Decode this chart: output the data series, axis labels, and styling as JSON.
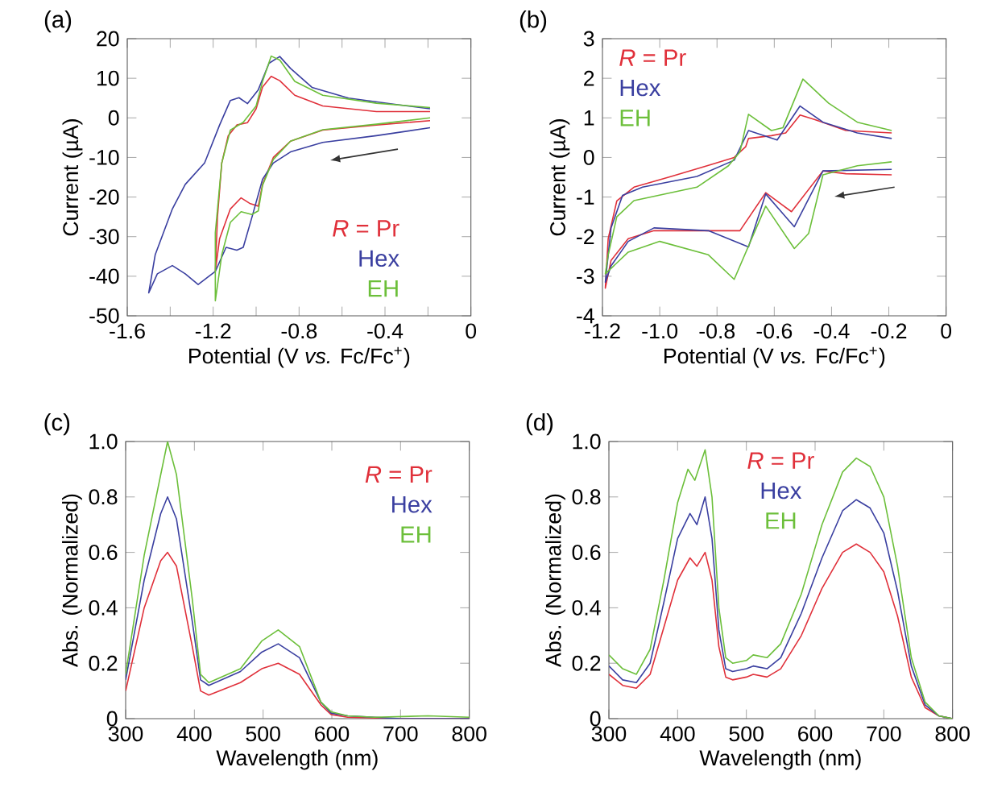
{
  "chart_data": [
    {
      "type": "line",
      "title": "(a)",
      "xlabel": "Potential (V *vs.* Fc/Fc$^{+}$)",
      "ylabel": "Current (µA)",
      "xlim": [
        -1.6,
        0
      ],
      "ylim": [
        -50,
        20
      ],
      "xticks": [
        -1.6,
        {
          "value": -1.4,
          "label": null
        },
        -1.2,
        {
          "value": -1.0,
          "label": null
        },
        -0.8,
        {
          "value": -0.6,
          "label": null
        },
        -0.4,
        {
          "value": -0.2,
          "label": null
        },
        0
      ],
      "yticks": [
        -50,
        -40,
        -30,
        -20,
        -10,
        0,
        10,
        20
      ],
      "legend": "bottom right",
      "series": [
        {
          "name": "*R* = Pr",
          "color": "#e0303a",
          "x": [
            -0.19,
            -0.44,
            -0.69,
            -0.84,
            -0.92,
            -0.97,
            -0.99,
            -1.03,
            -1.07,
            -1.12,
            -1.17,
            -1.19,
            -1.18,
            -1.16,
            -1.13,
            -1.09,
            -1.04,
            -1.0,
            -0.97,
            -0.93,
            -0.89,
            -0.82,
            -0.69,
            -0.44,
            -0.19
          ],
          "values": [
            -0.7,
            -1.8,
            -3.1,
            -5.9,
            -10,
            -16.8,
            -22.3,
            -21.6,
            -20.2,
            -23,
            -30.5,
            -38.7,
            -25,
            -11.4,
            -4.5,
            -1.8,
            -1.2,
            2.3,
            7.8,
            10.5,
            9.4,
            5.7,
            3,
            1.6,
            1.6
          ]
        },
        {
          "name": "Hex",
          "color": "#3a3fa0",
          "x": [
            -0.19,
            -0.44,
            -0.69,
            -0.84,
            -0.92,
            -0.97,
            -1.02,
            -1.06,
            -1.09,
            -1.14,
            -1.19,
            -1.27,
            -1.33,
            -1.39,
            -1.46,
            -1.5,
            -1.47,
            -1.39,
            -1.33,
            -1.24,
            -1.17,
            -1.12,
            -1.08,
            -1.04,
            -0.99,
            -0.94,
            -0.89,
            -0.84,
            -0.74,
            -0.57,
            -0.34,
            -0.19
          ],
          "values": [
            -2.5,
            -4.5,
            -6.2,
            -8.6,
            -11.4,
            -15.5,
            -25.2,
            -32.7,
            -33.4,
            -32.7,
            -38.8,
            -42.1,
            -39.4,
            -37.3,
            -39.4,
            -44.2,
            -34.6,
            -23,
            -16.8,
            -11.4,
            -1.8,
            4.4,
            5.1,
            3.6,
            7.1,
            13.8,
            15.5,
            12.5,
            7.7,
            5,
            3.3,
            2.3
          ]
        },
        {
          "name": "EH",
          "color": "#6cbf3a",
          "x": [
            -0.19,
            -0.44,
            -0.69,
            -0.84,
            -0.92,
            -0.97,
            -0.99,
            -1.02,
            -1.07,
            -1.12,
            -1.16,
            -1.19,
            -1.19,
            -1.16,
            -1.12,
            -1.06,
            -1.0,
            -0.97,
            -0.93,
            -0.89,
            -0.82,
            -0.69,
            -0.44,
            -0.19
          ],
          "values": [
            0,
            -1.6,
            -3,
            -5.9,
            -10.5,
            -17,
            -23.5,
            -24.4,
            -23.7,
            -26.4,
            -34.6,
            -46.2,
            -29,
            -11.4,
            -3.1,
            -1.1,
            3,
            9.2,
            15.6,
            14.6,
            9.2,
            5.7,
            3.7,
            2.6
          ]
        }
      ]
    },
    {
      "type": "line",
      "title": "(b)",
      "xlabel": "Potential (V *vs.* Fc/Fc$^{+}$)",
      "ylabel": "Current (µA)",
      "xlim": [
        -1.2,
        0
      ],
      "ylim": [
        -4,
        3
      ],
      "xticks": [
        -1.2,
        {
          "value": -1.0,
          "label": "-1.0"
        },
        -0.8,
        -0.6,
        -0.4,
        -0.2,
        0
      ],
      "yticks": [
        -4,
        -3,
        -2,
        -1,
        0,
        1,
        2,
        3
      ],
      "legend": "top left",
      "series": [
        {
          "name": "*R* = Pr",
          "color": "#e0303a",
          "x": [
            -0.19,
            -0.35,
            -0.43,
            -0.54,
            -0.63,
            -0.72,
            -0.87,
            -1.02,
            -1.11,
            -1.17,
            -1.19,
            -1.18,
            -1.15,
            -1.09,
            -0.96,
            -0.83,
            -0.74,
            -0.7,
            -0.69,
            -0.61,
            -0.56,
            -0.51,
            -0.46,
            -0.35,
            -0.19
          ],
          "values": [
            -0.44,
            -0.41,
            -0.34,
            -1.37,
            -0.89,
            -1.85,
            -1.85,
            -1.85,
            -2.05,
            -2.6,
            -3.3,
            -2.05,
            -1.1,
            -0.75,
            -0.48,
            -0.2,
            0,
            0.27,
            0.48,
            0.55,
            0.62,
            1.07,
            0.96,
            0.68,
            0.62
          ]
        },
        {
          "name": "Hex",
          "color": "#3a3fa0",
          "x": [
            -0.19,
            -0.43,
            -0.53,
            -0.63,
            -0.69,
            -0.83,
            -1.02,
            -1.11,
            -1.17,
            -1.19,
            -1.17,
            -1.13,
            -1.06,
            -0.87,
            -0.74,
            -0.69,
            -0.59,
            -0.51,
            -0.43,
            -0.31,
            -0.19
          ],
          "values": [
            -0.3,
            -0.34,
            -1.75,
            -0.92,
            -2.26,
            -1.85,
            -1.78,
            -2.12,
            -2.74,
            -3.15,
            -1.78,
            -0.96,
            -0.75,
            -0.48,
            -0.07,
            0.68,
            0.44,
            1.3,
            0.89,
            0.62,
            0.48
          ]
        },
        {
          "name": "EH",
          "color": "#6cbf3a",
          "x": [
            -0.19,
            -0.31,
            -0.43,
            -0.48,
            -0.53,
            -0.63,
            -0.74,
            -0.83,
            -1.0,
            -1.11,
            -1.19,
            -1.18,
            -1.15,
            -1.09,
            -0.87,
            -0.76,
            -0.72,
            -0.69,
            -0.61,
            -0.57,
            -0.5,
            -0.41,
            -0.31,
            -0.19
          ],
          "values": [
            -0.11,
            -0.21,
            -0.44,
            -1.92,
            -2.3,
            -1.23,
            -3.08,
            -2.46,
            -2.12,
            -2.39,
            -2.94,
            -2.46,
            -1.5,
            -1.09,
            -0.75,
            -0.21,
            0.14,
            1.09,
            0.68,
            0.75,
            1.98,
            1.37,
            0.89,
            0.68
          ]
        }
      ]
    },
    {
      "type": "line",
      "title": "(c)",
      "xlabel": "Wavelength (nm)",
      "ylabel": "Abs. (Normalized)",
      "xlim": [
        300,
        800
      ],
      "ylim": [
        0,
        1
      ],
      "xticks": [
        300,
        400,
        500,
        600,
        700,
        800
      ],
      "yticks": [
        0,
        0.2,
        0.4,
        0.6,
        0.8,
        {
          "value": 1,
          "label": "1.0"
        }
      ],
      "legend": "top right",
      "series": [
        {
          "name": "*R* = Pr",
          "color": "#e0303a",
          "x": [
            300,
            327,
            351,
            361,
            374,
            397,
            409,
            421,
            467,
            498,
            522,
            553,
            584,
            599,
            623,
            700,
            800
          ],
          "values": [
            0.1,
            0.4,
            0.57,
            0.6,
            0.55,
            0.26,
            0.1,
            0.085,
            0.13,
            0.18,
            0.2,
            0.16,
            0.05,
            0.015,
            0.005,
            0,
            0
          ]
        },
        {
          "name": "Hex",
          "color": "#3a3fa0",
          "x": [
            300,
            327,
            351,
            361,
            374,
            397,
            409,
            421,
            467,
            498,
            522,
            553,
            584,
            599,
            623,
            700,
            800
          ],
          "values": [
            0.14,
            0.5,
            0.74,
            0.8,
            0.72,
            0.35,
            0.14,
            0.12,
            0.17,
            0.24,
            0.27,
            0.22,
            0.06,
            0.02,
            0.01,
            0,
            0
          ]
        },
        {
          "name": "EH",
          "color": "#6cbf3a",
          "x": [
            300,
            327,
            351,
            361,
            374,
            397,
            409,
            421,
            467,
            498,
            522,
            553,
            584,
            599,
            623,
            662,
            740,
            800
          ],
          "values": [
            0.16,
            0.59,
            0.88,
            1.0,
            0.88,
            0.43,
            0.16,
            0.13,
            0.18,
            0.28,
            0.32,
            0.26,
            0.06,
            0.025,
            0.01,
            0.005,
            0.01,
            0.005
          ]
        }
      ]
    },
    {
      "type": "line",
      "title": "(d)",
      "xlabel": "Wavelength (nm)",
      "ylabel": "Abs. (Normalized)",
      "xlim": [
        300,
        800
      ],
      "ylim": [
        0,
        1
      ],
      "xticks": [
        300,
        400,
        500,
        600,
        700,
        800
      ],
      "yticks": [
        0,
        0.2,
        0.4,
        0.6,
        0.8,
        {
          "value": 1,
          "label": "1.0"
        }
      ],
      "legend": "top",
      "series": [
        {
          "name": "*R* = Pr",
          "color": "#e0303a",
          "x": [
            300,
            320,
            340,
            360,
            380,
            400,
            418,
            428,
            440,
            450,
            460,
            470,
            480,
            500,
            510,
            530,
            550,
            580,
            610,
            640,
            660,
            680,
            700,
            720,
            740,
            760,
            780,
            800
          ],
          "values": [
            0.16,
            0.12,
            0.11,
            0.16,
            0.33,
            0.5,
            0.58,
            0.55,
            0.6,
            0.5,
            0.26,
            0.15,
            0.14,
            0.15,
            0.16,
            0.15,
            0.18,
            0.3,
            0.47,
            0.6,
            0.63,
            0.6,
            0.53,
            0.37,
            0.15,
            0.04,
            0.01,
            0
          ]
        },
        {
          "name": "Hex",
          "color": "#3a3fa0",
          "x": [
            300,
            320,
            340,
            360,
            380,
            400,
            418,
            428,
            440,
            450,
            460,
            470,
            480,
            500,
            510,
            530,
            550,
            580,
            610,
            640,
            660,
            680,
            700,
            720,
            740,
            760,
            780,
            800
          ],
          "values": [
            0.19,
            0.14,
            0.13,
            0.2,
            0.42,
            0.65,
            0.74,
            0.7,
            0.8,
            0.65,
            0.32,
            0.18,
            0.17,
            0.18,
            0.19,
            0.18,
            0.22,
            0.38,
            0.58,
            0.75,
            0.79,
            0.76,
            0.67,
            0.46,
            0.19,
            0.05,
            0.01,
            0
          ]
        },
        {
          "name": "EH",
          "color": "#6cbf3a",
          "x": [
            300,
            320,
            340,
            360,
            380,
            400,
            415,
            425,
            440,
            450,
            460,
            470,
            480,
            500,
            510,
            530,
            550,
            580,
            610,
            640,
            660,
            680,
            700,
            720,
            740,
            760,
            780,
            800
          ],
          "values": [
            0.23,
            0.18,
            0.16,
            0.25,
            0.5,
            0.78,
            0.9,
            0.86,
            0.97,
            0.8,
            0.4,
            0.22,
            0.2,
            0.21,
            0.23,
            0.22,
            0.27,
            0.45,
            0.7,
            0.89,
            0.94,
            0.91,
            0.8,
            0.55,
            0.22,
            0.06,
            0.01,
            0
          ]
        }
      ]
    }
  ]
}
